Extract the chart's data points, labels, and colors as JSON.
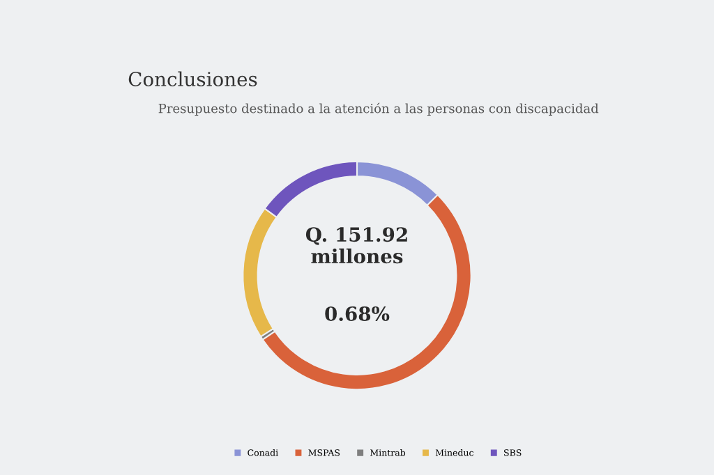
{
  "chart_data": {
    "type": "donut",
    "title": "Presupuesto destinado a la atención a las personas con discapacidad",
    "categories": [
      "Conadi",
      "MSPAS",
      "Mintrab",
      "Mineduc",
      "SBS"
    ],
    "values": [
      12.5,
      53,
      0.5,
      19,
      15
    ],
    "colors": [
      "#8a93d6",
      "#d9623a",
      "#7f7f7f",
      "#e6b84a",
      "#6e55bd"
    ],
    "legend": "bottom",
    "annotations": [
      "Conclusiones",
      "Q. 151.92\nmillones",
      "0.68%"
    ]
  }
}
